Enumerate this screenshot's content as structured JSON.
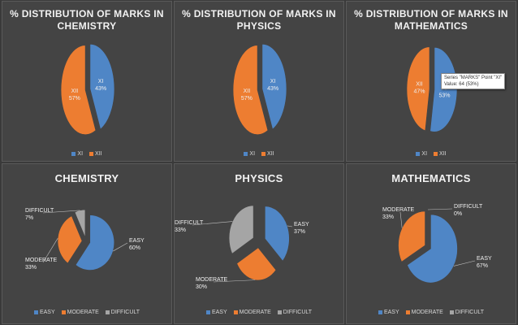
{
  "colors": {
    "blue": "#4f86c6",
    "orange": "#ed7d31",
    "gray": "#a5a5a5",
    "background": "#444444"
  },
  "chart_data": [
    {
      "id": "chem-class",
      "type": "pie",
      "title_lines": [
        "% DISTRIBUTION OF MARKS IN",
        "CHEMISTRY"
      ],
      "slices": [
        {
          "name": "XI",
          "value": 43,
          "label": "43%"
        },
        {
          "name": "XII",
          "value": 57,
          "label": "57%"
        }
      ],
      "legend": [
        "XI",
        "XII"
      ]
    },
    {
      "id": "phys-class",
      "type": "pie",
      "title_lines": [
        "% DISTRIBUTION OF MARKS IN",
        "PHYSICS"
      ],
      "slices": [
        {
          "name": "XI",
          "value": 43,
          "label": "43%"
        },
        {
          "name": "XII",
          "value": 57,
          "label": "57%"
        }
      ],
      "legend": [
        "XI",
        "XII"
      ]
    },
    {
      "id": "math-class",
      "type": "pie",
      "title_lines": [
        "% DISTRIBUTION OF MARKS IN",
        "MATHEMATICS"
      ],
      "slices": [
        {
          "name": "XI",
          "value": 53,
          "label": "53%"
        },
        {
          "name": "XII",
          "value": 47,
          "label": "47%"
        }
      ],
      "legend": [
        "XI",
        "XII"
      ],
      "tooltip": {
        "line1": "Series \"MARKS\" Point \"XI\"",
        "line2": "Value: 64 (53%)"
      }
    },
    {
      "id": "chem-diff",
      "type": "pie",
      "title_lines": [
        "CHEMISTRY"
      ],
      "slices": [
        {
          "name": "EASY",
          "value": 60,
          "label": "60%"
        },
        {
          "name": "MODERATE",
          "value": 33,
          "label": "33%"
        },
        {
          "name": "DIFFICULT",
          "value": 7,
          "label": "7%"
        }
      ],
      "legend": [
        "EASY",
        "MODERATE",
        "DIFFICULT"
      ]
    },
    {
      "id": "phys-diff",
      "type": "pie",
      "title_lines": [
        "PHYSICS"
      ],
      "slices": [
        {
          "name": "EASY",
          "value": 37,
          "label": "37%"
        },
        {
          "name": "MODERATE",
          "value": 30,
          "label": "30%"
        },
        {
          "name": "DIFFICULT",
          "value": 33,
          "label": "33%"
        }
      ],
      "legend": [
        "EASY",
        "MODERATE",
        "DIFFICULT"
      ]
    },
    {
      "id": "math-diff",
      "type": "pie",
      "title_lines": [
        "MATHEMATICS"
      ],
      "slices": [
        {
          "name": "EASY",
          "value": 67,
          "label": "67%"
        },
        {
          "name": "MODERATE",
          "value": 33,
          "label": "33%"
        },
        {
          "name": "DIFFICULT",
          "value": 0,
          "label": "0%"
        }
      ],
      "legend": [
        "EASY",
        "MODERATE",
        "DIFFICULT"
      ]
    }
  ]
}
